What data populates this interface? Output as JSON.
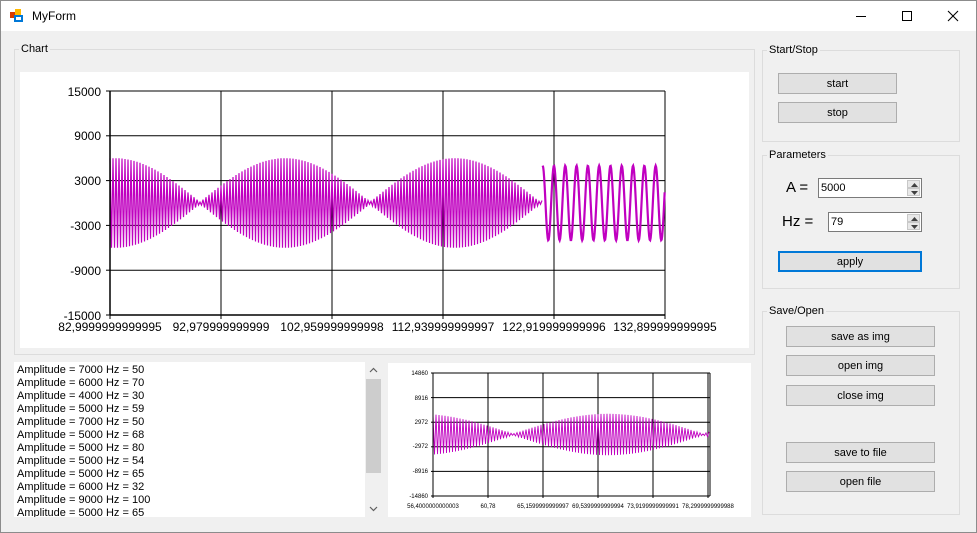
{
  "window": {
    "title": "MyForm"
  },
  "chart_group": {
    "legend": "Chart"
  },
  "main_chart": {
    "y_ticks": [
      "15000",
      "9000",
      "3000",
      "-3000",
      "-9000",
      "-15000"
    ],
    "x_ticks": [
      "82,9999999999995",
      "92,979999999999",
      "102,959999999998",
      "112,939999999997",
      "122,919999999996",
      "132,899999999995"
    ]
  },
  "mini_chart": {
    "y_ticks": [
      "14860",
      "8916",
      "2972",
      "-2972",
      "-8916",
      "-14860"
    ],
    "x_ticks": [
      "56,4000000000003",
      "60,78",
      "65,1599999999997",
      "69,5399999999994",
      "73,9199999999991",
      "78,2999999999988"
    ]
  },
  "chart_data": [
    {
      "type": "line",
      "title": "",
      "x_range": [
        82.9999999999995,
        132.899999999995
      ],
      "ylim": [
        -15000,
        15000
      ],
      "grid": true,
      "series": [
        {
          "color": "#c000c0",
          "segments": [
            {
              "x_range": [
                82.9999999999995,
                121.9
              ],
              "envelope": "beat",
              "amplitude": 6000
            },
            {
              "x_range": [
                121.9,
                132.899999999995
              ],
              "envelope": "constant",
              "amplitude": 5000
            }
          ]
        }
      ]
    },
    {
      "type": "line",
      "title": "",
      "x_range": [
        56.4000000000003,
        80.3
      ],
      "ylim": [
        -14860,
        14860
      ],
      "grid": true,
      "series": [
        {
          "color": "#c000c0",
          "envelope": "beat",
          "amplitude": 5000
        }
      ]
    }
  ],
  "start_stop": {
    "legend": "Start/Stop",
    "start_label": "start",
    "stop_label": "stop"
  },
  "parameters": {
    "legend": "Parameters",
    "a_label": "A =",
    "a_value": "5000",
    "hz_label": "Hz =",
    "hz_value": "79",
    "apply_label": "apply"
  },
  "save_open": {
    "legend": "Save/Open",
    "save_img_label": "save as img",
    "open_img_label": "open img",
    "close_img_label": "close img",
    "save_file_label": "save to file",
    "open_file_label": "open file"
  },
  "history": {
    "items": [
      "Amplitude = 7000 Hz = 50",
      "Amplitude = 6000 Hz = 70",
      "Amplitude = 4000 Hz = 30",
      "Amplitude = 5000 Hz = 59",
      "Amplitude = 7000 Hz = 50",
      "Amplitude = 5000 Hz = 68",
      "Amplitude = 5000 Hz = 80",
      "Amplitude = 5000 Hz = 54",
      "Amplitude = 5000 Hz = 65",
      "Amplitude = 6000 Hz = 32",
      "Amplitude = 9000 Hz = 100",
      "Amplitude = 5000 Hz = 65"
    ]
  },
  "colors": {
    "series": "#c000c0",
    "focus": "#0078d7"
  },
  "icons": {
    "app": "winforms-app-icon",
    "minimize": "minimize-icon",
    "maximize": "maximize-icon",
    "close": "close-icon"
  }
}
